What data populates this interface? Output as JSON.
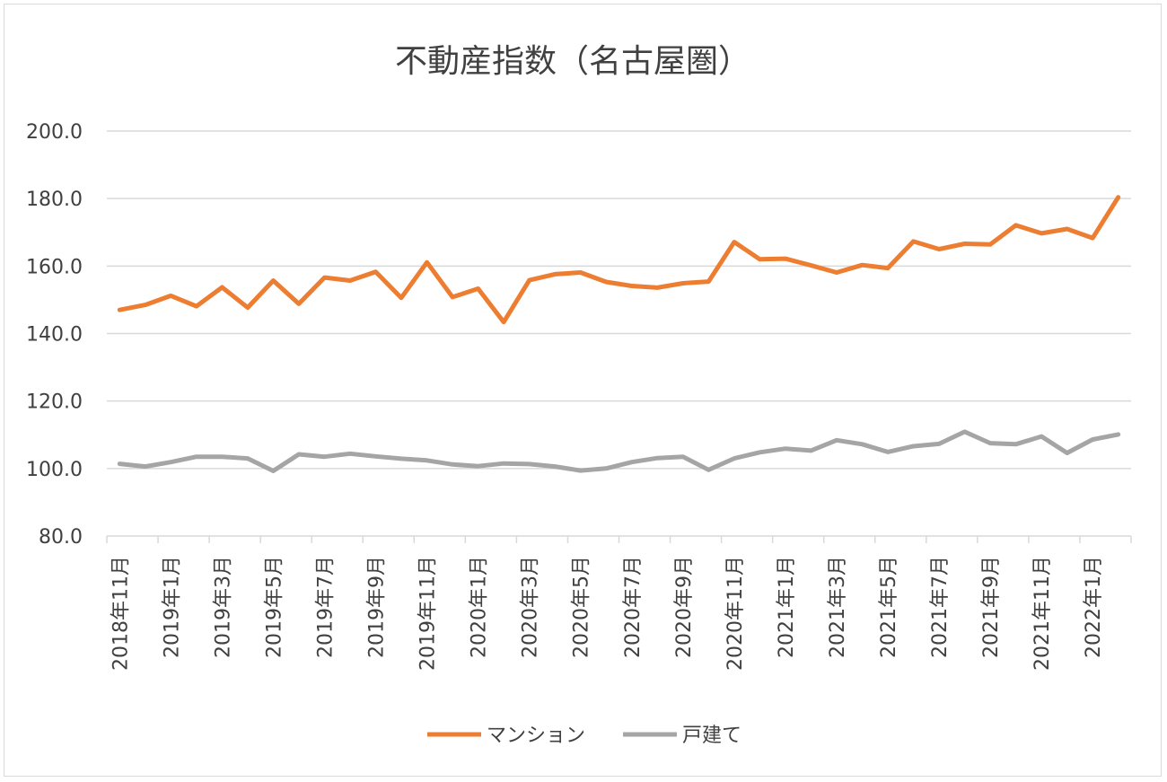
{
  "chart_data": {
    "type": "line",
    "title": "不動産指数（名古屋圏）",
    "xlabel": "",
    "ylabel": "",
    "ylim": [
      80,
      200
    ],
    "y_ticks": [
      "80.0",
      "100.0",
      "120.0",
      "140.0",
      "160.0",
      "180.0",
      "200.0"
    ],
    "x": [
      "2018年11月",
      "2018年12月",
      "2019年1月",
      "2019年2月",
      "2019年3月",
      "2019年4月",
      "2019年5月",
      "2019年6月",
      "2019年7月",
      "2019年8月",
      "2019年9月",
      "2019年10月",
      "2019年11月",
      "2019年12月",
      "2020年1月",
      "2020年2月",
      "2020年3月",
      "2020年4月",
      "2020年5月",
      "2020年6月",
      "2020年7月",
      "2020年8月",
      "2020年9月",
      "2020年10月",
      "2020年11月",
      "2020年12月",
      "2021年1月",
      "2021年2月",
      "2021年3月",
      "2021年4月",
      "2021年5月",
      "2021年6月",
      "2021年7月",
      "2021年8月",
      "2021年9月",
      "2021年10月",
      "2021年11月",
      "2021年12月",
      "2022年1月",
      "2022年2月"
    ],
    "x_tick_labels": [
      "2018年11月",
      "2019年1月",
      "2019年3月",
      "2019年5月",
      "2019年7月",
      "2019年9月",
      "2019年11月",
      "2020年1月",
      "2020年3月",
      "2020年5月",
      "2020年7月",
      "2020年9月",
      "2020年11月",
      "2021年1月",
      "2021年3月",
      "2021年5月",
      "2021年7月",
      "2021年9月",
      "2021年11月",
      "2022年1月"
    ],
    "grid": true,
    "legend": "bottom",
    "series": [
      {
        "name": "マンション",
        "color": "#ed7d31",
        "values": [
          147.0,
          148.5,
          151.2,
          148.1,
          153.7,
          147.7,
          155.7,
          148.8,
          156.6,
          155.7,
          158.3,
          150.6,
          161.1,
          150.8,
          153.3,
          143.4,
          155.8,
          157.6,
          158.1,
          155.3,
          154.1,
          153.6,
          154.9,
          155.4,
          167.1,
          162.0,
          162.2,
          160.2,
          158.1,
          160.3,
          159.4,
          167.3,
          165.0,
          166.6,
          166.4,
          172.1,
          169.7,
          171.0,
          168.3,
          180.4
        ]
      },
      {
        "name": "戸建て",
        "color": "#a5a5a5",
        "values": [
          101.4,
          100.6,
          101.9,
          103.5,
          103.5,
          103.0,
          99.3,
          104.2,
          103.5,
          104.4,
          103.6,
          102.9,
          102.4,
          101.2,
          100.7,
          101.5,
          101.3,
          100.6,
          99.4,
          100.0,
          101.9,
          103.1,
          103.5,
          99.6,
          103.0,
          104.8,
          105.9,
          105.3,
          108.4,
          107.2,
          104.9,
          106.6,
          107.3,
          110.9,
          107.5,
          107.2,
          109.5,
          104.6,
          108.6,
          110.1
        ]
      }
    ]
  }
}
